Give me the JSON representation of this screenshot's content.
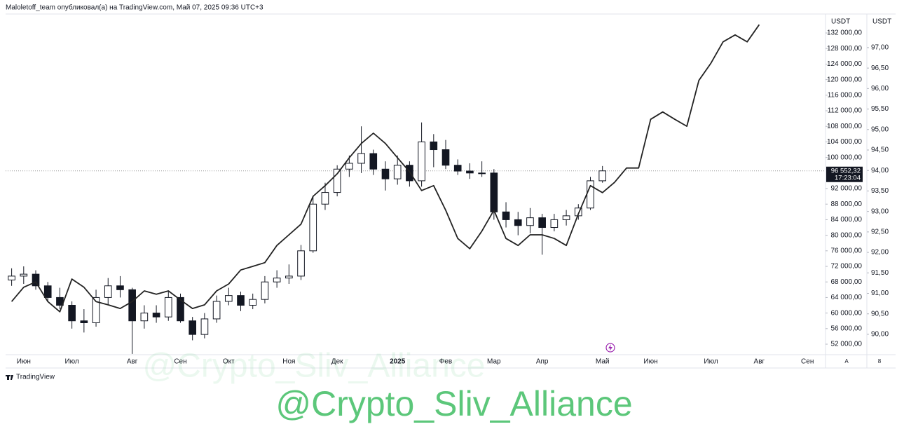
{
  "chart_data": {
    "type": "candlestick",
    "header": "Maloletoff_team опубликовал(а) на TradingView.com, Май 07, 2025 09:36 UTC+3",
    "categories": [
      null,
      "Июн",
      null,
      null,
      null,
      "Июл",
      null,
      null,
      null,
      null,
      "Авг",
      null,
      null,
      null,
      "Сен",
      null,
      null,
      null,
      "Окт",
      null,
      null,
      null,
      null,
      "Ноя",
      null,
      null,
      null,
      "Дек",
      null,
      null,
      null,
      null,
      "2025",
      null,
      null,
      null,
      "Фев",
      null,
      null,
      null,
      "Мар",
      null,
      null,
      null,
      "Апр",
      null,
      null,
      null,
      null,
      "Май",
      null,
      null,
      null,
      "Июн",
      null,
      null,
      null,
      null,
      "Июл",
      null,
      null,
      null,
      "Авг",
      null,
      null,
      null,
      "Сен",
      null
    ],
    "ohlc": {
      "color": "#131722",
      "open": [
        68500,
        69500,
        70000,
        67000,
        64000,
        62000,
        58000,
        57500,
        64000,
        67000,
        66000,
        58000,
        60000,
        59000,
        64000,
        58000,
        54500,
        58500,
        63000,
        64500,
        62000,
        63500,
        68000,
        69000,
        69500,
        76000,
        88000,
        91000,
        97000,
        98500,
        101000,
        97000,
        94500,
        98000,
        94000,
        104000,
        102000,
        98000,
        96500,
        96000,
        96000,
        86000,
        84000,
        82500,
        84500,
        82000,
        84000,
        85000,
        87000,
        94000,
        null,
        null,
        null,
        null,
        null,
        null,
        null,
        null,
        null,
        null,
        null,
        null,
        null,
        null,
        null,
        null,
        null,
        null
      ],
      "high": [
        71500,
        72000,
        71000,
        68000,
        66500,
        63000,
        61000,
        66000,
        69000,
        69500,
        66500,
        62000,
        62000,
        65500,
        65000,
        59000,
        60000,
        64500,
        66500,
        65500,
        65000,
        69500,
        71000,
        72500,
        77500,
        90000,
        93500,
        98000,
        100500,
        108000,
        102000,
        99000,
        100500,
        99000,
        109000,
        106000,
        104500,
        99500,
        98500,
        99000,
        97000,
        88500,
        86000,
        87000,
        85500,
        85500,
        86500,
        88000,
        95000,
        97800,
        null,
        null,
        null,
        null,
        null,
        null,
        null,
        null,
        null,
        null,
        null,
        null,
        null,
        null,
        null,
        null,
        null,
        null
      ],
      "low": [
        67000,
        67500,
        66000,
        63000,
        61000,
        56000,
        55000,
        56500,
        62000,
        64000,
        49500,
        56000,
        57500,
        58000,
        57500,
        53000,
        53500,
        57500,
        62000,
        60500,
        61000,
        62500,
        66500,
        67500,
        68500,
        75500,
        86500,
        90000,
        95000,
        96000,
        95500,
        91500,
        93000,
        92500,
        92500,
        97500,
        97000,
        95500,
        94500,
        95000,
        84000,
        82000,
        80000,
        80500,
        75000,
        81000,
        82500,
        84000,
        86500,
        93500,
        null,
        null,
        null,
        null,
        null,
        null,
        null,
        null,
        null,
        null,
        null,
        null,
        null,
        null,
        null,
        null,
        null,
        null
      ],
      "close": [
        69500,
        70000,
        67000,
        64000,
        62000,
        58000,
        57500,
        64000,
        67000,
        66000,
        58000,
        60000,
        59000,
        64000,
        58000,
        54500,
        58500,
        63000,
        64500,
        62000,
        63500,
        68000,
        69000,
        69500,
        76000,
        88000,
        91000,
        97000,
        98500,
        101000,
        97000,
        94500,
        98000,
        94000,
        104000,
        102000,
        98000,
        96500,
        96000,
        96000,
        86000,
        84000,
        82500,
        84500,
        82000,
        84000,
        85000,
        87000,
        94000,
        96552.32,
        null,
        null,
        null,
        null,
        null,
        null,
        null,
        null,
        null,
        null,
        null,
        null,
        null,
        null,
        null,
        null,
        null,
        null
      ]
    },
    "series": [
      {
        "color": "#222222",
        "axis": "y2",
        "values": [
          90.8,
          91.15,
          91.28,
          90.8,
          90.55,
          91.35,
          91.15,
          90.8,
          90.72,
          90.63,
          90.8,
          91.06,
          90.98,
          91.06,
          90.84,
          90.63,
          90.72,
          91.06,
          91.23,
          91.57,
          91.66,
          91.75,
          92.17,
          92.43,
          92.69,
          93.37,
          93.63,
          93.92,
          94.31,
          94.66,
          94.91,
          94.66,
          94.31,
          93.97,
          93.51,
          93.63,
          93.03,
          92.34,
          92.09,
          92.52,
          93.03,
          92.34,
          92.17,
          92.43,
          92.43,
          92.34,
          92.17,
          92.94,
          93.63,
          93.46,
          93.71,
          94.06,
          94.06,
          95.25,
          95.43,
          95.25,
          95.08,
          96.2,
          96.62,
          97.14,
          97.31,
          97.14,
          97.56,
          null,
          null,
          null,
          null,
          null
        ]
      }
    ],
    "y_axis_label": "USDT",
    "ylim": [
      49480,
      136870
    ],
    "yticks": [
      {
        "value": 52000,
        "label": "52 000,00"
      },
      {
        "value": 56000,
        "label": "56 000,00"
      },
      {
        "value": 60000,
        "label": "60 000,00"
      },
      {
        "value": 64000,
        "label": "64 000,00"
      },
      {
        "value": 68000,
        "label": "68 000,00"
      },
      {
        "value": 72000,
        "label": "72 000,00"
      },
      {
        "value": 76000,
        "label": "76 000,00"
      },
      {
        "value": 80000,
        "label": "80 000,00"
      },
      {
        "value": 84000,
        "label": "84 000,00"
      },
      {
        "value": 88000,
        "label": "88 000,00"
      },
      {
        "value": 92000,
        "label": "92 000,00"
      },
      {
        "value": 100000,
        "label": "100 000,00"
      },
      {
        "value": 104000,
        "label": "104 000,00"
      },
      {
        "value": 108000,
        "label": "108 000,00"
      },
      {
        "value": 112000,
        "label": "112 000,00"
      },
      {
        "value": 116000,
        "label": "116 000,00"
      },
      {
        "value": 120000,
        "label": "120 000,00"
      },
      {
        "value": 124000,
        "label": "124 000,00"
      },
      {
        "value": 128000,
        "label": "128 000,00"
      },
      {
        "value": 132000,
        "label": "132 000,00"
      }
    ],
    "y2_axis_label": "USDT",
    "y2lim": [
      89.52,
      97.82
    ],
    "y2ticks": [
      {
        "value": 90,
        "label": "90,00"
      },
      {
        "value": 90.5,
        "label": "90,50"
      },
      {
        "value": 91,
        "label": "91,00"
      },
      {
        "value": 91.5,
        "label": "91,50"
      },
      {
        "value": 92,
        "label": "92,00"
      },
      {
        "value": 92.5,
        "label": "92,50"
      },
      {
        "value": 93,
        "label": "93,00"
      },
      {
        "value": 93.5,
        "label": "93,50"
      },
      {
        "value": 94,
        "label": "94,00"
      },
      {
        "value": 94.5,
        "label": "94,50"
      },
      {
        "value": 95,
        "label": "95,00"
      },
      {
        "value": 95.5,
        "label": "95,50"
      },
      {
        "value": 96,
        "label": "96,00"
      },
      {
        "value": 96.5,
        "label": "96,50"
      },
      {
        "value": 97,
        "label": "97,00"
      }
    ],
    "last_price": {
      "value": 96552.32,
      "label": "96 552,32"
    },
    "countdown": "17:23:04",
    "scale_buttons": [
      "A",
      "8"
    ],
    "grid": false
  },
  "brand": "TradingView",
  "watermark": "@Crypto_Sliv_Alliance"
}
